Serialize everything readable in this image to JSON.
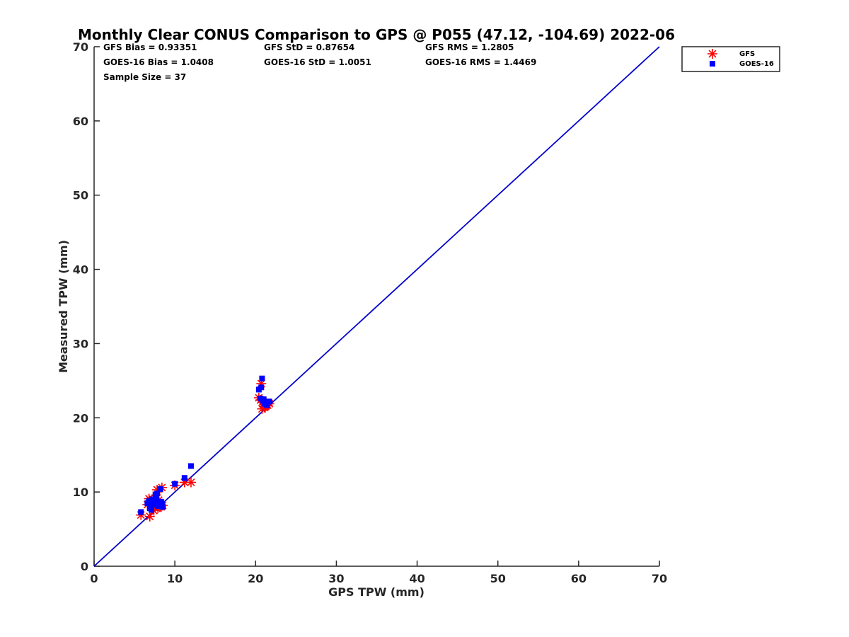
{
  "chart_data": {
    "type": "scatter",
    "title": "Monthly Clear CONUS Comparison to GPS @ P055 (47.12, -104.69) 2022-06",
    "xlabel": "GPS TPW (mm)",
    "ylabel": "Measured TPW (mm)",
    "xlim": [
      0,
      70
    ],
    "ylim": [
      0,
      70
    ],
    "xticks": [
      "0",
      "10",
      "20",
      "30",
      "40",
      "50",
      "60",
      "70"
    ],
    "yticks": [
      "0",
      "10",
      "20",
      "30",
      "40",
      "50",
      "60",
      "70"
    ],
    "grid": false,
    "legend_position": "outside-top-right",
    "stats": {
      "gfs_bias": "GFS Bias = 0.93351",
      "gfs_std": "GFS StD = 0.87654",
      "gfs_rms": "GFS RMS = 1.2805",
      "goes_bias": "GOES-16 Bias = 1.0408",
      "goes_std": "GOES-16 StD = 1.0051",
      "goes_rms": "GOES-16 RMS = 1.4469",
      "sample_size": "Sample Size = 37"
    },
    "reference_line": {
      "x": [
        0,
        70
      ],
      "y": [
        0,
        70
      ],
      "color": "#0000cc"
    },
    "series": [
      {
        "name": "GFS",
        "marker": "asterisk",
        "color": "#ff0000",
        "x": [
          5.8,
          6.6,
          6.9,
          7.0,
          7.2,
          7.3,
          7.5,
          7.6,
          7.8,
          7.9,
          8.0,
          8.2,
          8.4,
          8.5,
          6.8,
          7.1,
          7.4,
          7.7,
          8.1,
          10.0,
          11.2,
          12.0,
          20.4,
          20.7,
          20.8,
          21.0,
          21.2,
          21.4,
          21.7,
          20.9,
          21.1,
          21.5,
          7.0,
          8.3,
          7.6,
          20.6,
          21.3
        ],
        "y": [
          6.9,
          8.3,
          6.7,
          8.8,
          7.9,
          9.0,
          8.1,
          8.5,
          10.3,
          7.8,
          8.9,
          8.4,
          10.6,
          8.2,
          9.1,
          8.4,
          7.5,
          9.6,
          8.0,
          10.9,
          11.3,
          11.3,
          22.7,
          24.6,
          21.2,
          22.0,
          21.5,
          21.8,
          21.9,
          22.2,
          21.4,
          21.7,
          8.6,
          8.0,
          8.7,
          22.4,
          21.6
        ]
      },
      {
        "name": "GOES-16",
        "marker": "square",
        "color": "#0000ff",
        "x": [
          5.8,
          6.6,
          6.9,
          7.0,
          7.2,
          7.3,
          7.5,
          7.6,
          7.8,
          7.9,
          8.0,
          8.2,
          8.4,
          8.5,
          6.8,
          7.1,
          7.4,
          7.7,
          8.1,
          10.0,
          11.2,
          12.0,
          20.4,
          20.7,
          20.8,
          21.0,
          21.2,
          21.4,
          21.7,
          20.9,
          21.1,
          21.5,
          7.0,
          8.3,
          7.6,
          20.6,
          21.3
        ],
        "y": [
          7.3,
          8.5,
          7.8,
          8.2,
          9.0,
          8.7,
          8.3,
          9.4,
          9.8,
          8.1,
          8.6,
          10.4,
          8.4,
          8.0,
          8.8,
          7.6,
          8.9,
          9.1,
          8.3,
          11.1,
          11.9,
          13.5,
          23.8,
          24.1,
          25.3,
          22.5,
          22.0,
          21.7,
          22.2,
          22.3,
          21.9,
          22.1,
          8.4,
          8.7,
          9.6,
          22.6,
          22.0
        ]
      }
    ]
  }
}
